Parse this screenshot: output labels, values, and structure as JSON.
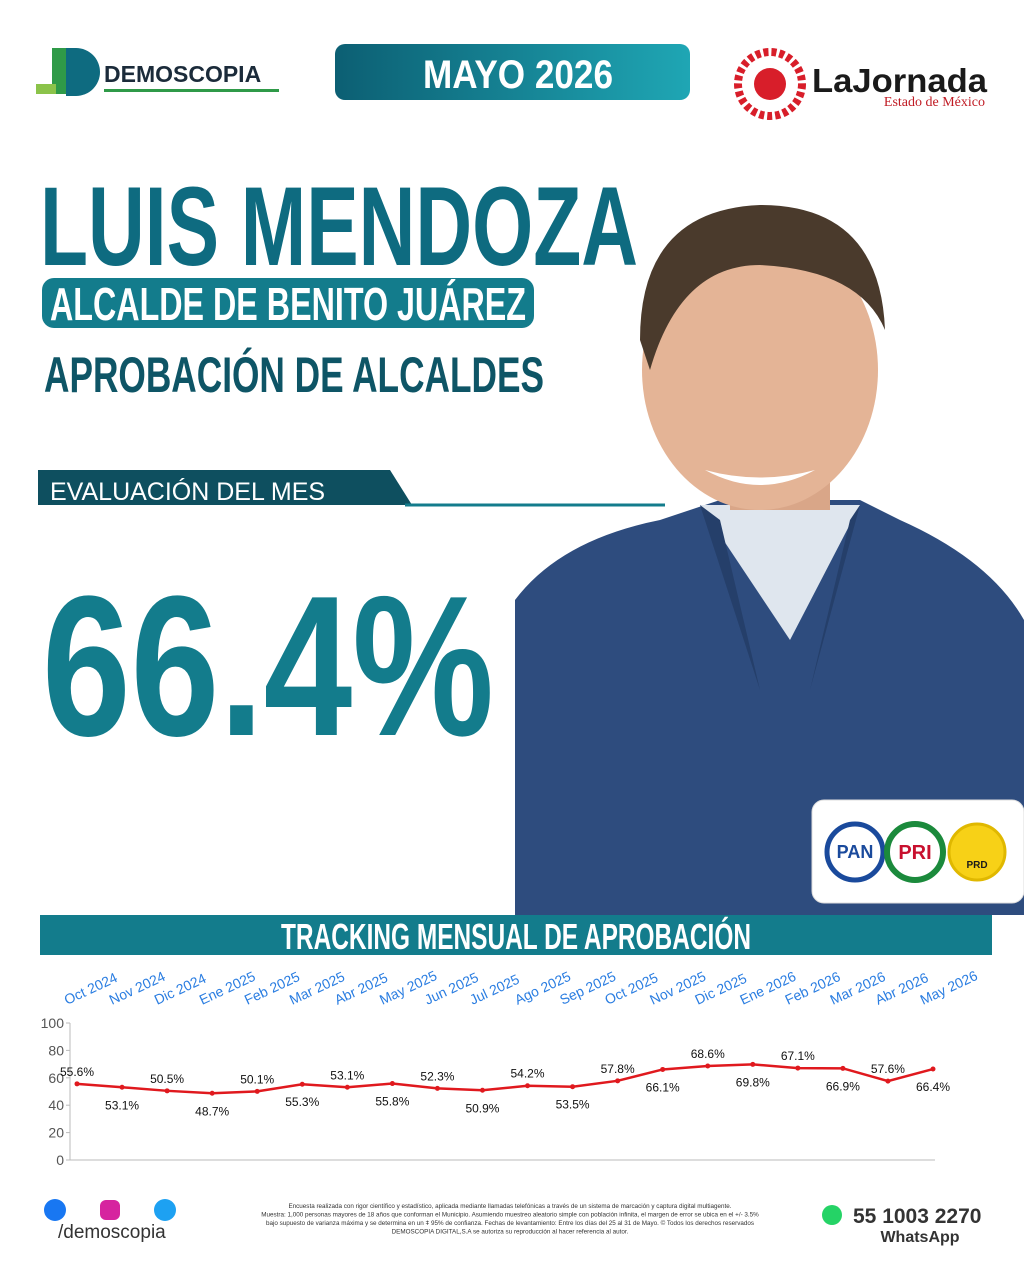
{
  "header": {
    "brand": "DEMOSCOPIA",
    "date": "MAYO 2026",
    "partner": "LaJornada",
    "partner_sub": "Estado de México"
  },
  "headline": {
    "name": "LUIS MENDOZA",
    "role": "ALCALDE DE BENITO JUÁREZ",
    "subtitle": "APROBACIÓN DE ALCALDES",
    "eval_label": "EVALUACIÓN DEL MES",
    "eval_value": "66.4%"
  },
  "parties": [
    "PAN",
    "PRI",
    "PRD"
  ],
  "chart_data": {
    "type": "line",
    "title": "TRACKING MENSUAL DE APROBACIÓN",
    "categories": [
      "Oct 2024",
      "Nov 2024",
      "Dic 2024",
      "Ene 2025",
      "Feb 2025",
      "Mar 2025",
      "Abr 2025",
      "May 2025",
      "Jun 2025",
      "Jul 2025",
      "Ago 2025",
      "Sep 2025",
      "Oct 2025",
      "Nov 2025",
      "Dic 2025",
      "Ene 2026",
      "Feb 2026",
      "Mar 2026",
      "Abr 2026",
      "May 2026"
    ],
    "values": [
      55.6,
      53.1,
      50.5,
      48.7,
      50.1,
      55.3,
      53.1,
      55.8,
      52.3,
      50.9,
      54.2,
      53.5,
      57.8,
      66.1,
      68.6,
      69.8,
      67.1,
      66.9,
      57.6,
      66.4
    ],
    "value_labels": [
      "55.6%",
      "53.1%",
      "50.5%",
      "48.7%",
      "50.1%",
      "55.3%",
      "53.1%",
      "55.8%",
      "52.3%",
      "50.9%",
      "54.2%",
      "53.5%",
      "57.8%",
      "66.1%",
      "68.6%",
      "69.8%",
      "67.1%",
      "66.9%",
      "57.6%",
      "66.4%"
    ],
    "color": "#e0191e",
    "ylim": [
      0,
      100
    ],
    "yticks": [
      0,
      20,
      40,
      60,
      80,
      100
    ]
  },
  "footer": {
    "handle": "/demoscopia",
    "disclaimer": [
      "Encuesta realizada con rigor científico y estadístico, aplicada mediante llamadas telefónicas a través de un sistema de marcación y captura digital multiagente.",
      "Muestra: 1,000 personas mayores de 18 años que conforman el Municipio. Asumiendo muestreo aleatorio simple con población infinita, el margen de error se ubica en el +/- 3.5%",
      "bajo supuesto de varianza máxima y se determina en un ǂ 95% de confianza. Fechas de levantamiento: Entre los días del 25 al 31 de Mayo. © Todos los derechos reservados",
      "DEMOSCOPIA DIGITAL,S.A se autoriza su reproducción al hacer referencia al autor."
    ],
    "phone": "55 1003 2270",
    "whatsapp": "WhatsApp"
  }
}
